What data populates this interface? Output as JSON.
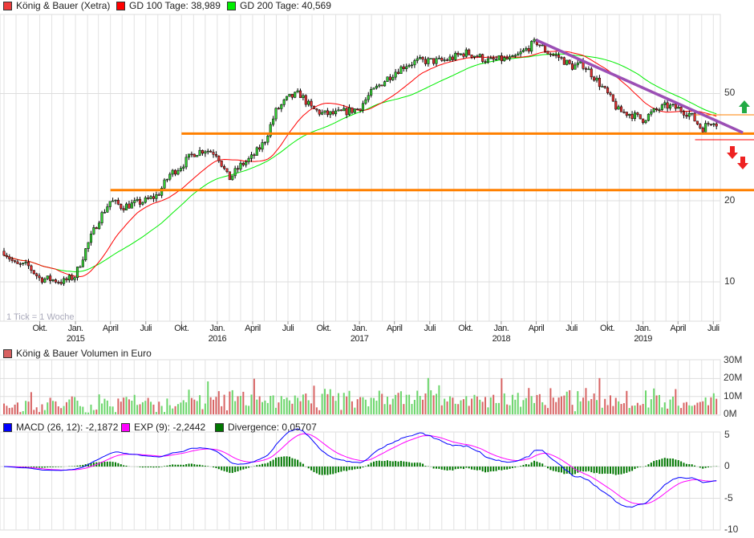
{
  "legend": {
    "price": {
      "label": "König & Bauer (Xetra)",
      "color": "#ee3b3b"
    },
    "gd100": {
      "label": "GD 100 Tage: 38,989",
      "color": "#ff0000"
    },
    "gd200": {
      "label": "GD 200 Tage: 40,569",
      "color": "#00ee00"
    },
    "volume": {
      "label": "König & Bauer Volumen in Euro",
      "color": "#d86060"
    },
    "macd": {
      "label": "MACD (26, 12): -2,1872",
      "color": "#0000ff"
    },
    "exp": {
      "label": "EXP (9): -2,2442",
      "color": "#ff00ff"
    },
    "divergence": {
      "label": "Divergence: 0,05707",
      "color": "#007700"
    }
  },
  "tick_note": "1 Tick = 1 Woche",
  "chart_data": [
    {
      "type": "candlestick",
      "title": "König & Bauer (Xetra)",
      "scale": "log",
      "ylim": [
        6.5,
        95
      ],
      "yticks": [
        {
          "value": 10,
          "label": "10"
        },
        {
          "value": 20,
          "label": "20"
        },
        {
          "value": 50,
          "label": "50"
        }
      ],
      "xstart": "2014-07-01",
      "xticks": [
        {
          "date": "2014-10-01",
          "label": "Okt.",
          "year": ""
        },
        {
          "date": "2015-01-01",
          "label": "Jan.",
          "year": "2015"
        },
        {
          "date": "2015-04-01",
          "label": "April",
          "year": ""
        },
        {
          "date": "2015-07-01",
          "label": "Juli",
          "year": ""
        },
        {
          "date": "2015-10-01",
          "label": "Okt.",
          "year": ""
        },
        {
          "date": "2016-01-01",
          "label": "Jan.",
          "year": "2016"
        },
        {
          "date": "2016-04-01",
          "label": "April",
          "year": ""
        },
        {
          "date": "2016-07-01",
          "label": "Juli",
          "year": ""
        },
        {
          "date": "2016-10-01",
          "label": "Okt.",
          "year": ""
        },
        {
          "date": "2017-01-01",
          "label": "Jan.",
          "year": "2017"
        },
        {
          "date": "2017-04-01",
          "label": "April",
          "year": ""
        },
        {
          "date": "2017-07-01",
          "label": "Juli",
          "year": ""
        },
        {
          "date": "2017-10-01",
          "label": "Okt.",
          "year": ""
        },
        {
          "date": "2018-01-01",
          "label": "Jan.",
          "year": "2018"
        },
        {
          "date": "2018-04-01",
          "label": "April",
          "year": ""
        },
        {
          "date": "2018-07-01",
          "label": "Juli",
          "year": ""
        },
        {
          "date": "2018-10-01",
          "label": "Okt.",
          "year": ""
        },
        {
          "date": "2019-01-01",
          "label": "Jan.",
          "year": "2019"
        },
        {
          "date": "2019-04-01",
          "label": "April",
          "year": ""
        },
        {
          "date": "2019-07-01",
          "label": "Juli",
          "year": ""
        }
      ],
      "monthly_close_from_2014_07": [
        13,
        11.5,
        11.5,
        10.3,
        10.2,
        10,
        10.5,
        13.5,
        17,
        20,
        19,
        19.5,
        20,
        21,
        25,
        27,
        30,
        31,
        30,
        24,
        27,
        29,
        33,
        43,
        48,
        50,
        44,
        42,
        42,
        43,
        44,
        50,
        55,
        60,
        64,
        66,
        66,
        66,
        68,
        71,
        69,
        66,
        67,
        67,
        72,
        78,
        71,
        68,
        63,
        64,
        57,
        50,
        43,
        42,
        40,
        43,
        45,
        44,
        42,
        37,
        40,
        35
      ],
      "trendlines": [
        {
          "kind": "horizontal",
          "value": 35.5,
          "from": "2015-10-01",
          "color": "#ff8000",
          "weight": "thick"
        },
        {
          "kind": "horizontal",
          "value": 21.9,
          "from": "2015-04-01",
          "color": "#ff8000",
          "weight": "thick"
        },
        {
          "kind": "horizontal",
          "value": 41.7,
          "from": "2019-05-15",
          "color": "#ff8000",
          "weight": "thin"
        },
        {
          "kind": "horizontal",
          "value": 33.7,
          "from": "2019-05-15",
          "color": "#ff0000",
          "weight": "thin"
        },
        {
          "kind": "diagonal",
          "from_date": "2018-04-01",
          "from_value": 79,
          "to_date": "2019-09-15",
          "to_value": 35.8,
          "color": "#9b4fb5",
          "weight": "thick"
        }
      ],
      "signals": [
        {
          "kind": "up",
          "color": "#22aa44"
        },
        {
          "kind": "down",
          "color": "#ee2222"
        },
        {
          "kind": "down",
          "color": "#ee2222"
        }
      ]
    },
    {
      "type": "bar",
      "title": "König & Bauer Volumen in Euro",
      "ylim": [
        0,
        30
      ],
      "unit": "M",
      "yticks": [
        {
          "value": 0,
          "label": "0M"
        },
        {
          "value": 10,
          "label": "10M"
        },
        {
          "value": 20,
          "label": "20M"
        },
        {
          "value": 30,
          "label": "30M"
        }
      ],
      "colors": {
        "up": "#6cd66c",
        "down": "#d86464"
      }
    },
    {
      "type": "line",
      "title": "MACD",
      "ylim": [
        -10,
        5
      ],
      "yticks": [
        {
          "value": 5,
          "label": "5"
        },
        {
          "value": 0,
          "label": "0"
        },
        {
          "value": -5,
          "label": "-5"
        },
        {
          "value": -10,
          "label": "-10"
        }
      ],
      "series": [
        {
          "name": "MACD (26, 12)",
          "last": -2.1872,
          "color": "#0000ff"
        },
        {
          "name": "EXP (9)",
          "last": -2.2442,
          "color": "#ff00ff"
        },
        {
          "name": "Divergence",
          "last": 0.05707,
          "color": "#007700"
        }
      ]
    }
  ]
}
